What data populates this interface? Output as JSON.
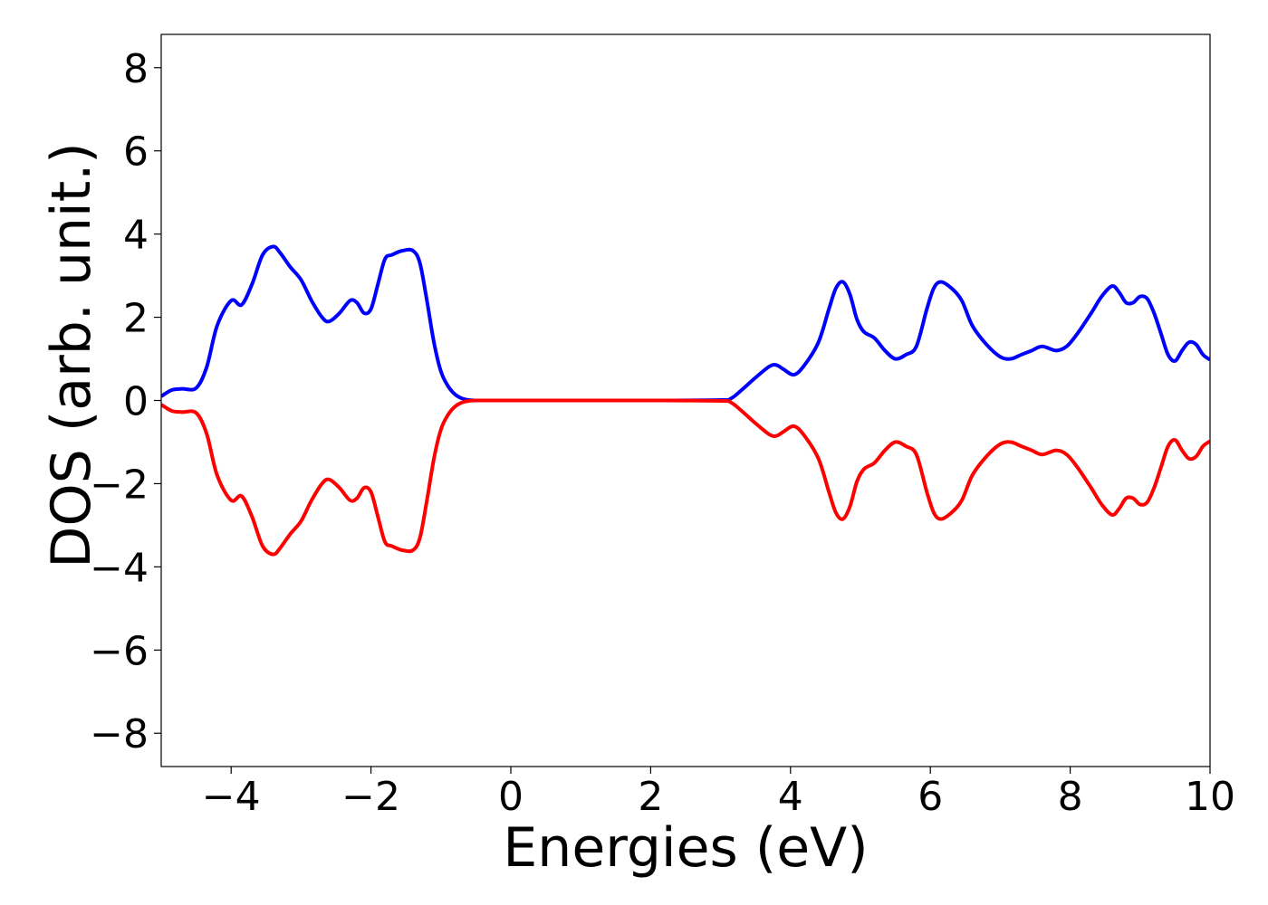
{
  "chart_data": {
    "type": "line",
    "xlabel": "Energies (eV)",
    "ylabel": "DOS (arb. unit.)",
    "xlim": [
      -5,
      10
    ],
    "ylim": [
      -8.8,
      8.8
    ],
    "xticks": [
      -4,
      -2,
      0,
      2,
      4,
      6,
      8,
      10
    ],
    "xtick_labels": [
      "−4",
      "−2",
      "0",
      "2",
      "4",
      "6",
      "8",
      "10"
    ],
    "yticks": [
      8,
      6,
      4,
      2,
      0,
      -2,
      -4,
      -6,
      -8
    ],
    "ytick_labels": [
      "8",
      "6",
      "4",
      "2",
      "0",
      "−2",
      "−4",
      "−6",
      "−8"
    ],
    "grid": false,
    "series": [
      {
        "color": "#0000ff",
        "x": [
          -5.0,
          -4.85,
          -4.7,
          -4.5,
          -4.35,
          -4.2,
          -4.0,
          -3.85,
          -3.7,
          -3.55,
          -3.4,
          -3.3,
          -3.15,
          -3.0,
          -2.85,
          -2.7,
          -2.6,
          -2.45,
          -2.3,
          -2.2,
          -2.1,
          -2.0,
          -1.9,
          -1.8,
          -1.7,
          -1.55,
          -1.4,
          -1.3,
          -1.2,
          -1.1,
          -1.0,
          -0.9,
          -0.8,
          -0.7,
          -0.6,
          -0.5,
          -0.3,
          0.0,
          1.0,
          2.0,
          3.0,
          3.15,
          3.3,
          3.5,
          3.7,
          3.8,
          3.9,
          4.05,
          4.2,
          4.4,
          4.55,
          4.65,
          4.75,
          4.85,
          4.95,
          5.05,
          5.2,
          5.35,
          5.5,
          5.65,
          5.8,
          5.95,
          6.05,
          6.15,
          6.3,
          6.45,
          6.6,
          6.8,
          7.0,
          7.15,
          7.3,
          7.45,
          7.6,
          7.8,
          7.95,
          8.1,
          8.3,
          8.45,
          8.6,
          8.7,
          8.8,
          8.9,
          9.0,
          9.1,
          9.2,
          9.3,
          9.4,
          9.5,
          9.6,
          9.7,
          9.8,
          9.9,
          10.0
        ],
        "y": [
          0.1,
          0.25,
          0.28,
          0.3,
          0.8,
          1.8,
          2.4,
          2.3,
          2.8,
          3.5,
          3.7,
          3.55,
          3.2,
          2.9,
          2.4,
          2.0,
          1.9,
          2.1,
          2.4,
          2.35,
          2.1,
          2.2,
          2.8,
          3.4,
          3.5,
          3.6,
          3.6,
          3.3,
          2.4,
          1.4,
          0.7,
          0.35,
          0.15,
          0.05,
          0.01,
          0.0,
          0.0,
          0.0,
          0.0,
          0.0,
          0.01,
          0.05,
          0.25,
          0.55,
          0.82,
          0.85,
          0.75,
          0.62,
          0.85,
          1.4,
          2.2,
          2.7,
          2.85,
          2.55,
          1.95,
          1.65,
          1.5,
          1.2,
          1.0,
          1.1,
          1.3,
          2.2,
          2.7,
          2.85,
          2.7,
          2.4,
          1.8,
          1.35,
          1.05,
          1.0,
          1.1,
          1.2,
          1.3,
          1.2,
          1.3,
          1.6,
          2.1,
          2.5,
          2.75,
          2.6,
          2.35,
          2.35,
          2.5,
          2.45,
          2.1,
          1.6,
          1.1,
          0.95,
          1.2,
          1.4,
          1.35,
          1.1,
          0.98
        ]
      },
      {
        "color": "#ff0000",
        "x": [
          -5.0,
          -4.85,
          -4.7,
          -4.5,
          -4.35,
          -4.2,
          -4.0,
          -3.85,
          -3.7,
          -3.55,
          -3.4,
          -3.3,
          -3.15,
          -3.0,
          -2.85,
          -2.7,
          -2.6,
          -2.45,
          -2.3,
          -2.2,
          -2.1,
          -2.0,
          -1.9,
          -1.8,
          -1.7,
          -1.55,
          -1.4,
          -1.3,
          -1.2,
          -1.1,
          -1.0,
          -0.9,
          -0.8,
          -0.7,
          -0.6,
          -0.5,
          -0.3,
          0.0,
          1.0,
          2.0,
          3.0,
          3.15,
          3.3,
          3.5,
          3.7,
          3.8,
          3.9,
          4.05,
          4.2,
          4.4,
          4.55,
          4.65,
          4.75,
          4.85,
          4.95,
          5.05,
          5.2,
          5.35,
          5.5,
          5.65,
          5.8,
          5.95,
          6.05,
          6.15,
          6.3,
          6.45,
          6.6,
          6.8,
          7.0,
          7.15,
          7.3,
          7.45,
          7.6,
          7.8,
          7.95,
          8.1,
          8.3,
          8.45,
          8.6,
          8.7,
          8.8,
          8.9,
          9.0,
          9.1,
          9.2,
          9.3,
          9.4,
          9.5,
          9.6,
          9.7,
          9.8,
          9.9,
          10.0
        ],
        "y": [
          -0.1,
          -0.25,
          -0.28,
          -0.3,
          -0.8,
          -1.8,
          -2.4,
          -2.3,
          -2.8,
          -3.5,
          -3.7,
          -3.55,
          -3.2,
          -2.9,
          -2.4,
          -2.0,
          -1.9,
          -2.1,
          -2.4,
          -2.35,
          -2.1,
          -2.2,
          -2.8,
          -3.4,
          -3.5,
          -3.6,
          -3.6,
          -3.3,
          -2.4,
          -1.4,
          -0.7,
          -0.35,
          -0.15,
          -0.05,
          -0.01,
          0.0,
          0.0,
          0.0,
          0.0,
          0.0,
          -0.01,
          -0.05,
          -0.25,
          -0.55,
          -0.82,
          -0.85,
          -0.75,
          -0.62,
          -0.85,
          -1.4,
          -2.2,
          -2.7,
          -2.85,
          -2.55,
          -1.95,
          -1.65,
          -1.5,
          -1.2,
          -1.0,
          -1.1,
          -1.3,
          -2.2,
          -2.7,
          -2.85,
          -2.7,
          -2.4,
          -1.8,
          -1.35,
          -1.05,
          -1.0,
          -1.1,
          -1.2,
          -1.3,
          -1.2,
          -1.3,
          -1.6,
          -2.1,
          -2.5,
          -2.75,
          -2.6,
          -2.35,
          -2.35,
          -2.5,
          -2.45,
          -2.1,
          -1.6,
          -1.1,
          -0.95,
          -1.2,
          -1.4,
          -1.35,
          -1.1,
          -0.98
        ]
      }
    ]
  }
}
